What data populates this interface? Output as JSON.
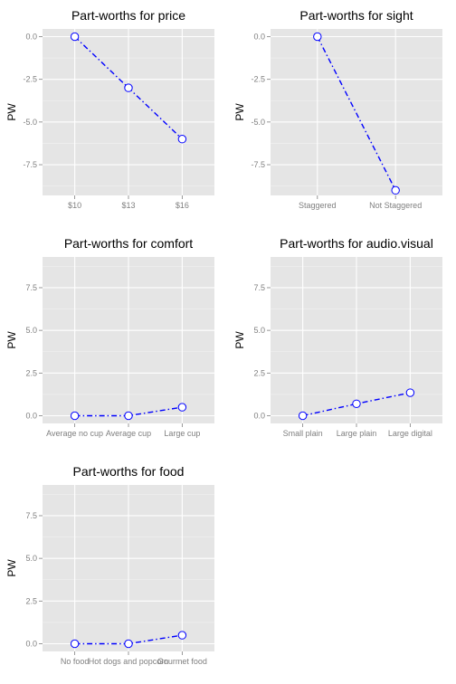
{
  "colors": {
    "panel_bg": "#e5e5e5",
    "grid_major": "#ffffff",
    "grid_minor": "#f2f2f2",
    "line": "#0000ff",
    "tick_text": "#7f7f7f"
  },
  "chart_data": [
    {
      "type": "line",
      "title": "Part-worths for price",
      "ylabel": "PW",
      "xlabel": "",
      "categories": [
        "$10",
        "$13",
        "$16"
      ],
      "values": [
        0.0,
        -3.0,
        -6.0
      ],
      "ylim": [
        -9.3,
        0.45
      ],
      "yticks": [
        0.0,
        -2.5,
        -5.0,
        -7.5
      ],
      "ytick_labels": [
        "0.0",
        "-2.5",
        "-5.0",
        "-7.5"
      ],
      "grid": true,
      "line_style": "dash-dot",
      "marker": "open-circle"
    },
    {
      "type": "line",
      "title": "Part-worths for sight",
      "ylabel": "PW",
      "xlabel": "",
      "categories": [
        "Staggered",
        "Not Staggered"
      ],
      "values": [
        0.0,
        -9.0
      ],
      "ylim": [
        -9.3,
        0.45
      ],
      "yticks": [
        0.0,
        -2.5,
        -5.0,
        -7.5
      ],
      "ytick_labels": [
        "0.0",
        "-2.5",
        "-5.0",
        "-7.5"
      ],
      "grid": true,
      "line_style": "dash-dot",
      "marker": "open-circle"
    },
    {
      "type": "line",
      "title": "Part-worths for comfort",
      "ylabel": "PW",
      "xlabel": "",
      "categories": [
        "Average no cup",
        "Average cup",
        "Large cup"
      ],
      "values": [
        0.0,
        0.0,
        0.5
      ],
      "ylim": [
        -0.45,
        9.3
      ],
      "yticks": [
        0.0,
        2.5,
        5.0,
        7.5
      ],
      "ytick_labels": [
        "0.0",
        "2.5",
        "5.0",
        "7.5"
      ],
      "grid": true,
      "line_style": "dash-dot",
      "marker": "open-circle"
    },
    {
      "type": "line",
      "title": "Part-worths for audio.visual",
      "ylabel": "PW",
      "xlabel": "",
      "categories": [
        "Small plain",
        "Large plain",
        "Large digital"
      ],
      "values": [
        0.0,
        0.7,
        1.35
      ],
      "ylim": [
        -0.45,
        9.3
      ],
      "yticks": [
        0.0,
        2.5,
        5.0,
        7.5
      ],
      "ytick_labels": [
        "0.0",
        "2.5",
        "5.0",
        "7.5"
      ],
      "grid": true,
      "line_style": "dash-dot",
      "marker": "open-circle"
    },
    {
      "type": "line",
      "title": "Part-worths for food",
      "ylabel": "PW",
      "xlabel": "",
      "categories": [
        "No food",
        "Hot dogs and popcorn",
        "Gourmet food"
      ],
      "values": [
        0.0,
        0.0,
        0.5
      ],
      "ylim": [
        -0.45,
        9.3
      ],
      "yticks": [
        0.0,
        2.5,
        5.0,
        7.5
      ],
      "ytick_labels": [
        "0.0",
        "2.5",
        "5.0",
        "7.5"
      ],
      "grid": true,
      "line_style": "dash-dot",
      "marker": "open-circle"
    }
  ]
}
